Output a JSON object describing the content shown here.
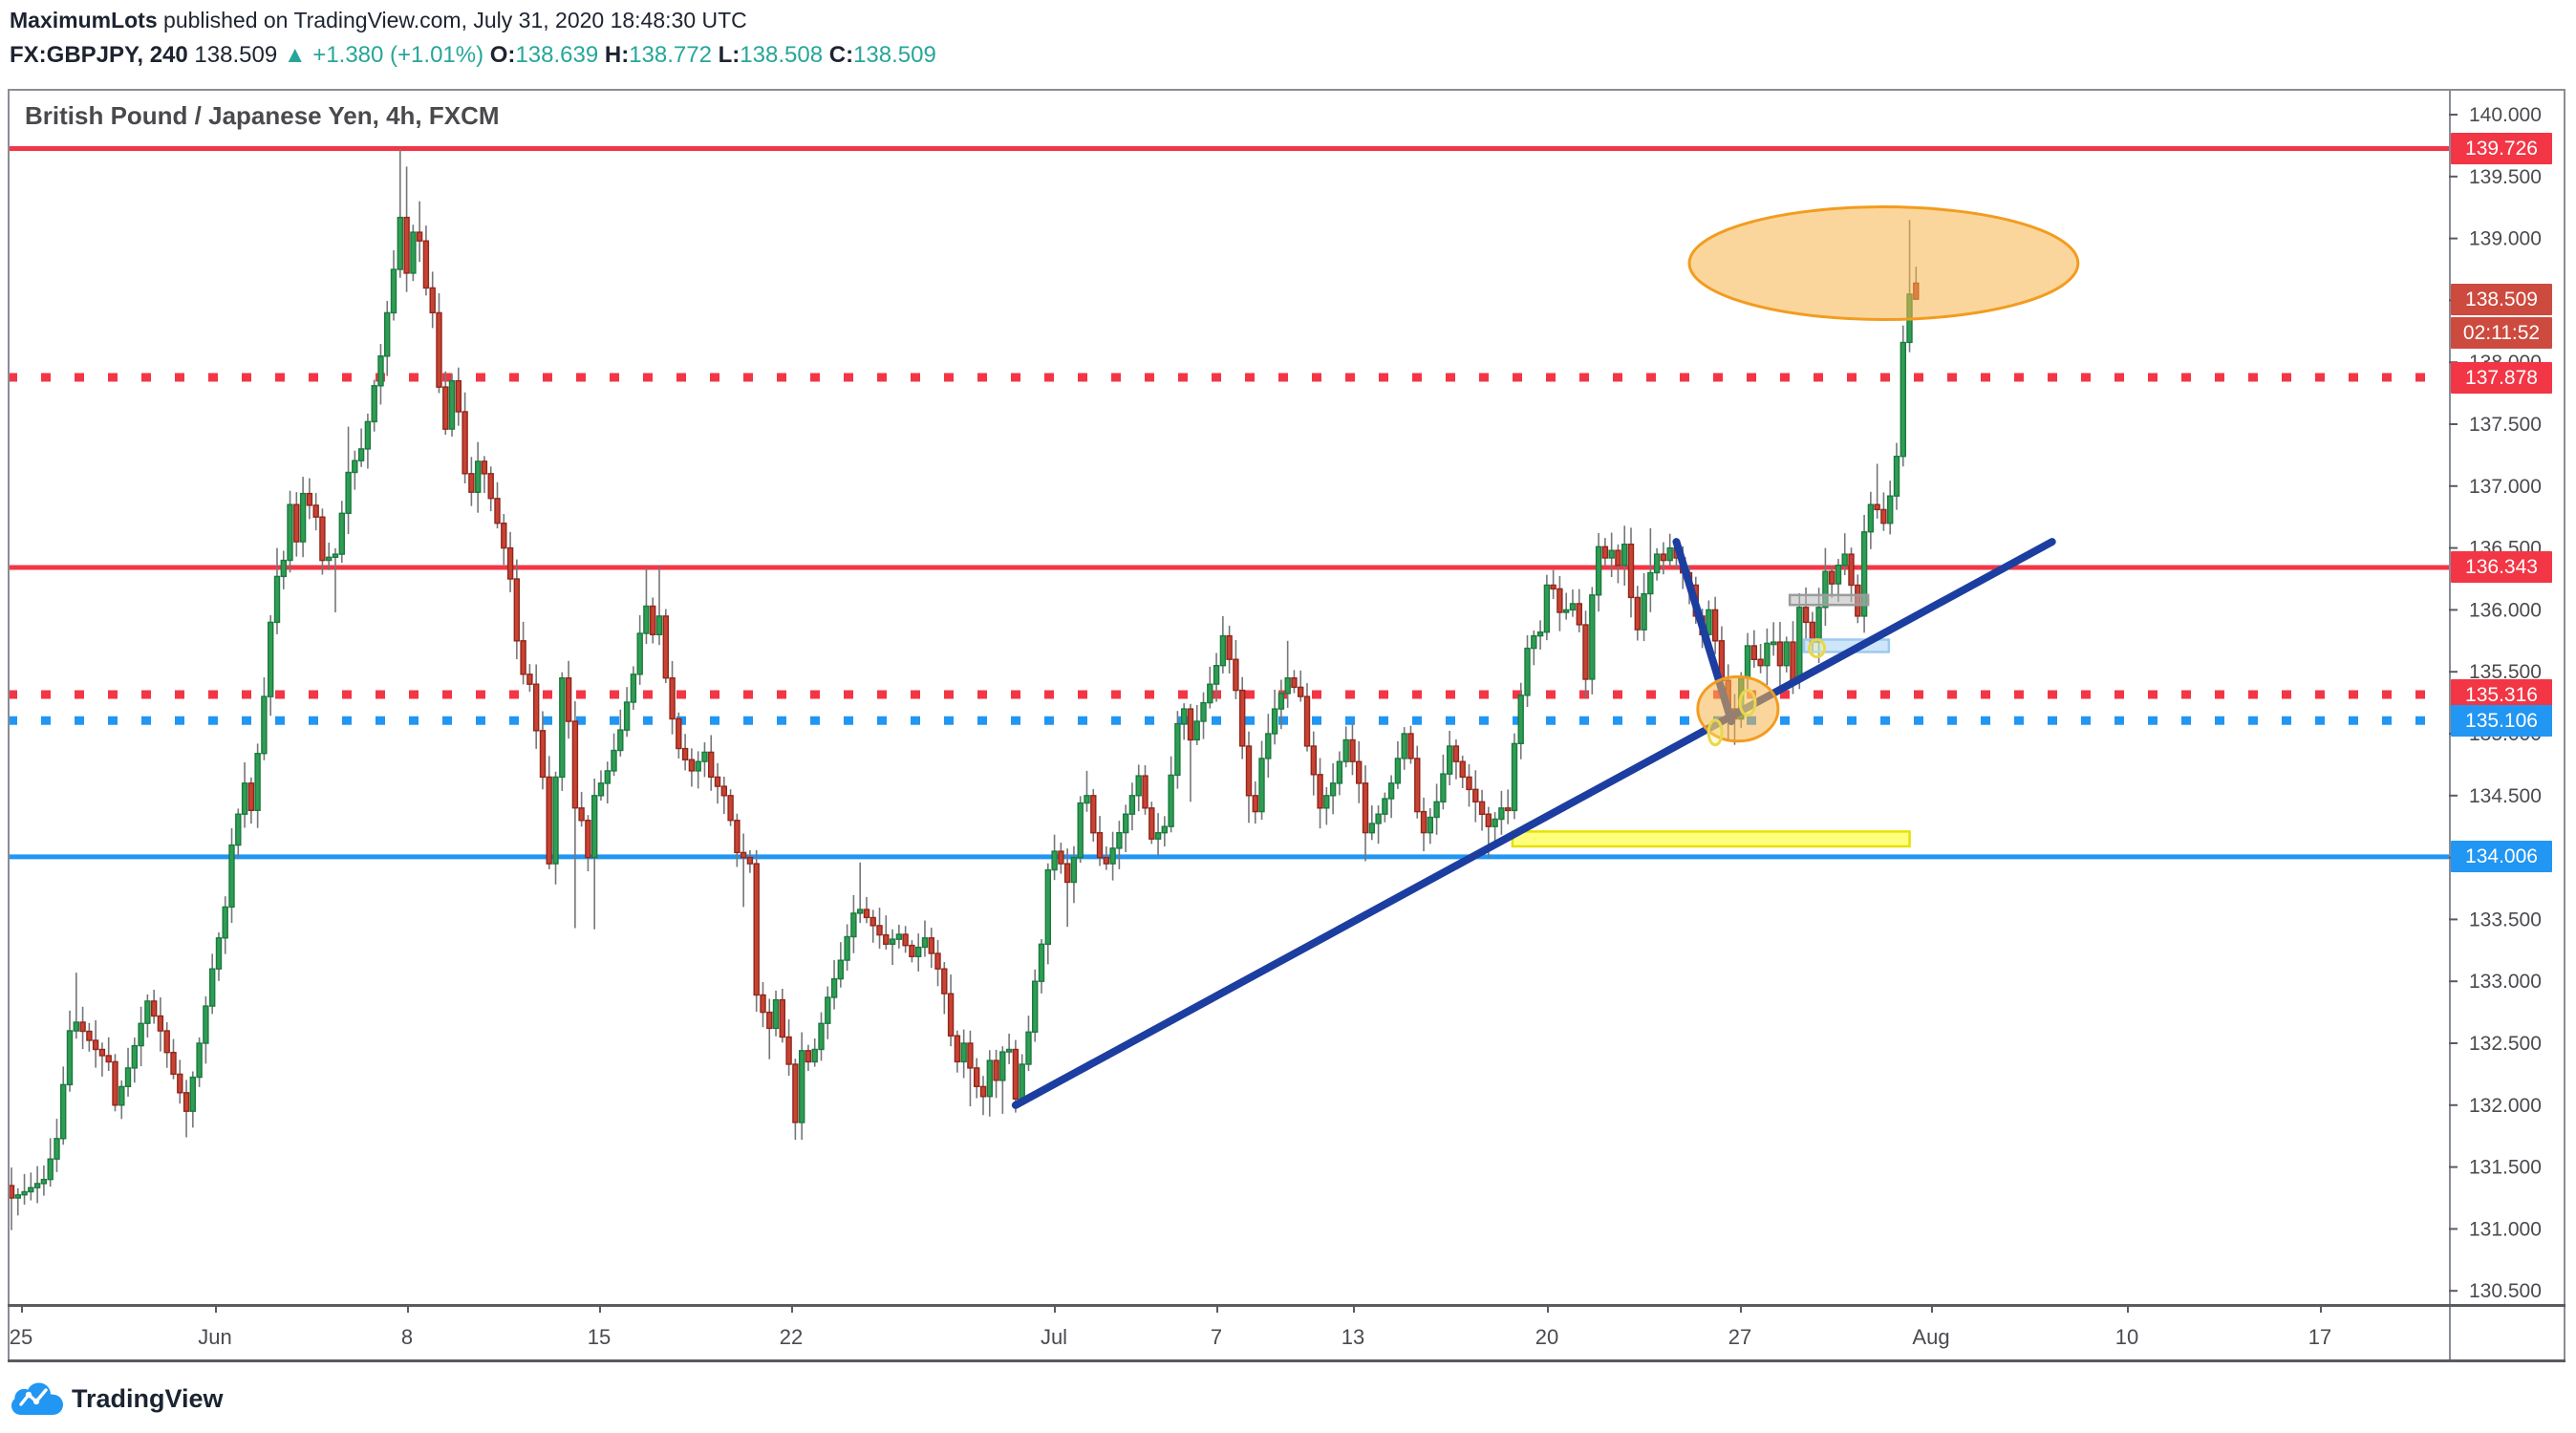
{
  "header": {
    "author": "MaximumLots",
    "published": " published on TradingView.com, July 31, 2020 18:48:30 UTC",
    "symbol": "FX:GBPJPY, 240",
    "last": "138.509",
    "up_triangle": "▲",
    "change": "+1.380 (+1.01%)",
    "o_label": "O:",
    "o": "138.639",
    "h_label": "H:",
    "h": "138.772",
    "l_label": "L:",
    "l": "138.508",
    "c_label": "C:",
    "c": "138.509"
  },
  "chart_title": "British Pound / Japanese Yen, 4h, FXCM",
  "logo_text": "TradingView",
  "colors": {
    "accent_red": "#f23645",
    "accent_blue": "#2196f3",
    "current_tag": "#cd4a3f",
    "up_fill": "#2f9d54",
    "up_border": "#1a7a3e",
    "down_fill": "#c74334",
    "down_border": "#92261a",
    "wick": "#757679",
    "trend_blue": "#1c3ea0",
    "ellipse_fill": "rgba(248,181,75,0.55)",
    "ellipse_stroke": "#f29c1f",
    "rect_yellow_fill": "rgba(255,255,40,0.60)",
    "rect_yellow_stroke": "#e8e000",
    "rect_blue_fill": "rgba(158,205,245,0.50)",
    "rect_blue_stroke": "#9ec9ef",
    "rect_gray_fill": "rgba(185,185,185,0.55)",
    "rect_gray_stroke": "#9b9b9b",
    "mini_circle_fill": "rgba(250,240,140,0.35)",
    "mini_circle_stroke": "#e8d84a",
    "axis_text": "#4a4a50"
  },
  "price_axis": {
    "tick_max": 140.0,
    "tick_min": 130.5,
    "tick_step": 0.5,
    "decimals": 3,
    "countdown": "02:11:52",
    "tags": [
      {
        "text": "139.726",
        "price": 139.726,
        "color": "#f23645"
      },
      {
        "text": "138.509",
        "price": 138.509,
        "color": "#cd4a3f",
        "countdown_below": true
      },
      {
        "text": "137.878",
        "price": 137.878,
        "color": "#f23645"
      },
      {
        "text": "136.343",
        "price": 136.343,
        "color": "#f23645"
      },
      {
        "text": "135.316",
        "price": 135.316,
        "color": "#f23645"
      },
      {
        "text": "135.106",
        "price": 135.106,
        "color": "#2196f3"
      },
      {
        "text": "134.006",
        "price": 134.006,
        "color": "#2196f3"
      }
    ]
  },
  "time_axis": [
    {
      "label": "25",
      "bar": 1.5
    },
    {
      "label": "Jun",
      "bar": 31.4
    },
    {
      "label": "8",
      "bar": 61.1
    },
    {
      "label": "15",
      "bar": 90.7
    },
    {
      "label": "22",
      "bar": 120.4
    },
    {
      "label": "Jul",
      "bar": 160.9
    },
    {
      "label": "7",
      "bar": 186.0
    },
    {
      "label": "13",
      "bar": 207.1
    },
    {
      "label": "20",
      "bar": 237.0
    },
    {
      "label": "27",
      "bar": 266.8
    },
    {
      "label": "Aug",
      "bar": 296.3
    },
    {
      "label": "10",
      "bar": 326.5
    },
    {
      "label": "17",
      "bar": 356.3
    }
  ],
  "chart_data": {
    "type": "candlestick",
    "title": "British Pound / Japanese Yen, 4h, FXCM",
    "symbol": "FX:GBPJPY",
    "timeframe_minutes": 240,
    "exchange": "FXCM",
    "ylim": [
      130.34,
      140.21
    ],
    "y_tick_interval": 0.5,
    "grid": "off",
    "bar_count": 295,
    "last_bar_ohlc": {
      "o": 138.639,
      "h": 138.772,
      "l": 138.508,
      "c": 138.509
    },
    "levels": [
      {
        "price": 139.726,
        "color": "#f23645",
        "style": "solid",
        "width": 5
      },
      {
        "price": 137.878,
        "color": "#f23645",
        "style": "dotted",
        "width": 9
      },
      {
        "price": 136.343,
        "color": "#f23645",
        "style": "solid",
        "width": 5
      },
      {
        "price": 135.316,
        "color": "#f23645",
        "style": "dotted",
        "width": 9
      },
      {
        "price": 135.106,
        "color": "#2196f3",
        "style": "dotted",
        "width": 9
      },
      {
        "price": 134.006,
        "color": "#2196f3",
        "style": "solid",
        "width": 5
      }
    ],
    "path_anchors": [
      [
        0,
        131.25
      ],
      [
        2,
        131.3
      ],
      [
        5,
        131.4
      ],
      [
        7,
        131.73
      ],
      [
        9,
        132.6
      ],
      [
        10,
        132.67
      ],
      [
        13,
        132.45
      ],
      [
        15,
        132.35
      ],
      [
        16,
        132.0
      ],
      [
        18,
        132.3
      ],
      [
        21,
        132.84
      ],
      [
        23,
        132.6
      ],
      [
        25,
        132.25
      ],
      [
        27,
        131.95
      ],
      [
        29,
        132.5
      ],
      [
        31,
        133.1
      ],
      [
        33,
        133.6
      ],
      [
        34,
        134.1
      ],
      [
        36,
        134.6
      ],
      [
        37,
        134.38
      ],
      [
        39,
        135.3
      ],
      [
        40,
        135.9
      ],
      [
        41,
        136.27
      ],
      [
        42,
        136.4
      ],
      [
        43,
        136.85
      ],
      [
        44,
        136.55
      ],
      [
        45,
        136.94
      ],
      [
        47,
        136.75
      ],
      [
        48,
        136.4
      ],
      [
        50,
        136.45
      ],
      [
        52,
        137.11
      ],
      [
        54,
        137.3
      ],
      [
        55,
        137.52
      ],
      [
        56,
        137.81
      ],
      [
        57,
        138.05
      ],
      [
        59,
        138.75
      ],
      [
        60,
        139.17
      ],
      [
        61,
        138.72
      ],
      [
        62,
        139.05
      ],
      [
        63,
        138.98
      ],
      [
        64,
        138.6
      ],
      [
        65,
        138.4
      ],
      [
        66,
        137.8
      ],
      [
        67,
        137.46
      ],
      [
        68,
        137.85
      ],
      [
        69,
        137.6
      ],
      [
        70,
        137.1
      ],
      [
        71,
        136.95
      ],
      [
        72,
        137.2
      ],
      [
        73,
        137.1
      ],
      [
        74,
        136.9
      ],
      [
        76,
        136.5
      ],
      [
        77,
        136.25
      ],
      [
        78,
        135.75
      ],
      [
        79,
        135.48
      ],
      [
        80,
        135.4
      ],
      [
        82,
        134.65
      ],
      [
        83,
        133.95
      ],
      [
        84,
        134.65
      ],
      [
        85,
        135.45
      ],
      [
        86,
        135.1
      ],
      [
        87,
        134.4
      ],
      [
        88,
        134.3
      ],
      [
        89,
        134.0
      ],
      [
        90,
        134.5
      ],
      [
        92,
        134.7
      ],
      [
        94,
        135.03
      ],
      [
        96,
        135.48
      ],
      [
        97,
        135.81
      ],
      [
        98,
        136.03
      ],
      [
        99,
        135.8
      ],
      [
        100,
        135.95
      ],
      [
        101,
        135.45
      ],
      [
        102,
        135.12
      ],
      [
        103,
        134.88
      ],
      [
        105,
        134.7
      ],
      [
        107,
        134.85
      ],
      [
        108,
        134.65
      ],
      [
        110,
        134.5
      ],
      [
        111,
        134.3
      ],
      [
        112,
        134.04
      ],
      [
        113,
        134.0
      ],
      [
        114,
        133.95
      ],
      [
        115,
        132.89
      ],
      [
        116,
        132.75
      ],
      [
        117,
        132.62
      ],
      [
        118,
        132.85
      ],
      [
        119,
        132.55
      ],
      [
        120,
        132.33
      ],
      [
        121,
        131.86
      ],
      [
        122,
        132.44
      ],
      [
        123,
        132.35
      ],
      [
        124,
        132.45
      ],
      [
        126,
        132.87
      ],
      [
        128,
        133.17
      ],
      [
        130,
        133.55
      ],
      [
        131,
        133.58
      ],
      [
        133,
        133.45
      ],
      [
        135,
        133.3
      ],
      [
        137,
        133.38
      ],
      [
        139,
        133.2
      ],
      [
        141,
        133.35
      ],
      [
        143,
        133.1
      ],
      [
        144,
        132.9
      ],
      [
        145,
        132.56
      ],
      [
        146,
        132.35
      ],
      [
        147,
        132.5
      ],
      [
        148,
        132.3
      ],
      [
        149,
        132.15
      ],
      [
        150,
        132.07
      ],
      [
        151,
        132.36
      ],
      [
        152,
        132.2
      ],
      [
        153,
        132.43
      ],
      [
        154,
        132.45
      ],
      [
        155,
        132.05
      ],
      [
        156,
        132.33
      ],
      [
        157,
        132.59
      ],
      [
        158,
        133.0
      ],
      [
        159,
        133.3
      ],
      [
        160,
        133.9
      ],
      [
        161,
        134.05
      ],
      [
        162,
        133.95
      ],
      [
        163,
        133.8
      ],
      [
        164,
        134.0
      ],
      [
        165,
        134.44
      ],
      [
        166,
        134.5
      ],
      [
        167,
        134.2
      ],
      [
        168,
        134.0
      ],
      [
        169,
        133.95
      ],
      [
        171,
        134.2
      ],
      [
        173,
        134.5
      ],
      [
        174,
        134.66
      ],
      [
        175,
        134.4
      ],
      [
        176,
        134.15
      ],
      [
        178,
        134.25
      ],
      [
        180,
        135.08
      ],
      [
        181,
        135.2
      ],
      [
        182,
        134.95
      ],
      [
        183,
        135.1
      ],
      [
        184,
        135.25
      ],
      [
        186,
        135.55
      ],
      [
        187,
        135.79
      ],
      [
        188,
        135.6
      ],
      [
        189,
        135.35
      ],
      [
        190,
        134.9
      ],
      [
        191,
        134.5
      ],
      [
        192,
        134.37
      ],
      [
        193,
        134.8
      ],
      [
        195,
        135.2
      ],
      [
        197,
        135.45
      ],
      [
        199,
        135.3
      ],
      [
        200,
        134.9
      ],
      [
        201,
        134.67
      ],
      [
        202,
        134.4
      ],
      [
        204,
        134.6
      ],
      [
        206,
        134.95
      ],
      [
        208,
        134.6
      ],
      [
        209,
        134.2
      ],
      [
        211,
        134.35
      ],
      [
        213,
        134.6
      ],
      [
        215,
        135.0
      ],
      [
        216,
        134.8
      ],
      [
        217,
        134.37
      ],
      [
        218,
        134.2
      ],
      [
        220,
        134.45
      ],
      [
        222,
        134.9
      ],
      [
        224,
        134.65
      ],
      [
        226,
        134.45
      ],
      [
        228,
        134.25
      ],
      [
        229,
        134.31
      ],
      [
        230,
        134.4
      ],
      [
        231,
        134.38
      ],
      [
        232,
        134.92
      ],
      [
        233,
        135.31
      ],
      [
        234,
        135.69
      ],
      [
        235,
        135.79
      ],
      [
        236,
        135.82
      ],
      [
        237,
        136.2
      ],
      [
        238,
        136.17
      ],
      [
        239,
        135.98
      ],
      [
        240,
        136.0
      ],
      [
        241,
        136.05
      ],
      [
        242,
        135.88
      ],
      [
        243,
        135.44
      ],
      [
        244,
        136.12
      ],
      [
        245,
        136.51
      ],
      [
        246,
        136.42
      ],
      [
        247,
        136.48
      ],
      [
        248,
        136.36
      ],
      [
        249,
        136.53
      ],
      [
        250,
        136.1
      ],
      [
        251,
        135.84
      ],
      [
        252,
        136.13
      ],
      [
        253,
        136.3
      ],
      [
        254,
        136.45
      ],
      [
        255,
        136.4
      ],
      [
        256,
        136.5
      ],
      [
        257,
        136.42
      ],
      [
        258,
        136.3
      ],
      [
        259,
        136.2
      ],
      [
        260,
        135.95
      ],
      [
        261,
        135.8
      ],
      [
        262,
        136.0
      ],
      [
        263,
        135.75
      ],
      [
        264,
        135.43
      ],
      [
        265,
        135.2
      ],
      [
        266,
        135.12
      ],
      [
        267,
        135.45
      ],
      [
        268,
        135.71
      ],
      [
        269,
        135.6
      ],
      [
        270,
        135.55
      ],
      [
        271,
        135.73
      ],
      [
        272,
        135.74
      ],
      [
        273,
        135.55
      ],
      [
        274,
        135.74
      ],
      [
        275,
        135.43
      ],
      [
        276,
        136.02
      ],
      [
        277,
        135.9
      ],
      [
        278,
        135.74
      ],
      [
        279,
        136.02
      ],
      [
        280,
        136.31
      ],
      [
        281,
        136.21
      ],
      [
        282,
        136.36
      ],
      [
        283,
        136.45
      ],
      [
        284,
        136.2
      ],
      [
        285,
        135.95
      ],
      [
        286,
        136.63
      ],
      [
        287,
        136.85
      ],
      [
        288,
        136.81
      ],
      [
        289,
        136.7
      ],
      [
        290,
        136.92
      ],
      [
        291,
        137.24
      ],
      [
        292,
        138.16
      ],
      [
        293,
        138.55
      ],
      [
        294,
        138.509
      ]
    ],
    "wick_overrides": {
      "0": {
        "l": 130.99
      },
      "10": {
        "h": 133.07
      },
      "27": {
        "l": 131.74
      },
      "41": {
        "h": 136.5
      },
      "50": {
        "l": 135.98
      },
      "52": {
        "h": 137.48
      },
      "60": {
        "h": 139.726
      },
      "61": {
        "h": 139.58
      },
      "63": {
        "h": 139.3
      },
      "87": {
        "l": 133.43
      },
      "90": {
        "l": 133.42
      },
      "98": {
        "h": 136.34
      },
      "100": {
        "h": 136.35
      },
      "113": {
        "l": 133.6
      },
      "117": {
        "l": 132.37
      },
      "121": {
        "l": 131.72
      },
      "131": {
        "h": 133.96
      },
      "148": {
        "l": 131.99
      },
      "150": {
        "l": 131.92
      },
      "153": {
        "l": 131.93
      },
      "155": {
        "l": 131.94
      },
      "163": {
        "l": 133.44
      },
      "166": {
        "h": 134.7
      },
      "174": {
        "h": 134.75
      },
      "182": {
        "l": 134.45
      },
      "187": {
        "h": 135.95
      },
      "191": {
        "l": 134.28
      },
      "197": {
        "h": 135.75
      },
      "209": {
        "l": 133.97
      },
      "218": {
        "l": 134.05
      },
      "228": {
        "l": 134.0
      },
      "229": {
        "l": 134.09
      },
      "245": {
        "h": 136.62
      },
      "253": {
        "h": 136.66
      },
      "264": {
        "l": 135.32
      },
      "265": {
        "l": 134.95
      },
      "266": {
        "l": 134.91
      },
      "272": {
        "l": 135.63
      },
      "275": {
        "l": 135.32
      },
      "278": {
        "l": 135.63
      },
      "280": {
        "h": 136.5
      },
      "288": {
        "h": 137.18
      },
      "293": {
        "h": 139.15
      },
      "294": {
        "o": 138.639,
        "h": 138.772,
        "l": 138.508,
        "c": 138.509
      }
    },
    "annotations": {
      "trendlines": [
        {
          "name": "rising-trendline",
          "b1": 155,
          "p1": 132.0,
          "b2": 315,
          "p2": 136.55,
          "width": 8
        },
        {
          "name": "pullback-line",
          "b1": 257,
          "p1": 136.55,
          "b2": 265.5,
          "p2": 135.1,
          "width": 8
        }
      ],
      "ellipses": [
        {
          "name": "target-zone",
          "b": 289,
          "p": 138.8,
          "rx_bars": 30,
          "ry_price": 0.455
        },
        {
          "name": "bounce-zone",
          "b": 266.5,
          "p": 135.2,
          "rx_bars": 6.2,
          "ry_price": 0.26
        }
      ],
      "mini_circles": [
        {
          "b": 263,
          "p": 135.01,
          "rx": 7,
          "ry": 13
        },
        {
          "b": 268,
          "p": 135.25,
          "rx": 8,
          "ry": 13
        },
        {
          "b": 278.7,
          "p": 135.69,
          "rx": 8,
          "ry": 9
        }
      ],
      "rects": [
        {
          "name": "support-zone-yellow",
          "b1": 231.7,
          "b2": 293,
          "p1": 134.21,
          "p2": 134.09,
          "kind": "yellow"
        },
        {
          "name": "demand-zone-blue",
          "b1": 276.7,
          "b2": 289.8,
          "p1": 135.76,
          "p2": 135.66,
          "kind": "blue"
        },
        {
          "name": "supply-zone-gray",
          "b1": 274.5,
          "b2": 286.6,
          "p1": 136.12,
          "p2": 136.04,
          "kind": "gray"
        }
      ]
    }
  }
}
